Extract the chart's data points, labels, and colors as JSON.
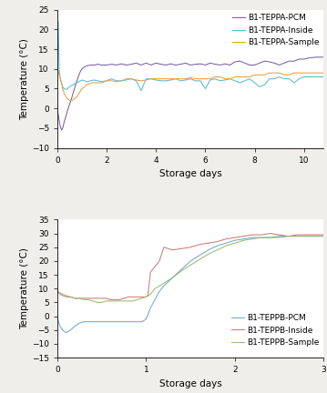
{
  "top": {
    "xlabel": "Storage days",
    "ylabel": "Temperature (°C)",
    "xlim": [
      0,
      10.8
    ],
    "ylim": [
      -10,
      25
    ],
    "yticks": [
      -10,
      -5,
      0,
      5,
      10,
      15,
      20,
      25
    ],
    "xticks": [
      0,
      2,
      4,
      6,
      8,
      10
    ],
    "legend": [
      "B1-TEPPA-PCM",
      "B1-TEPPA-Inside",
      "B1-TEPPA-Sample"
    ],
    "colors": [
      "#7B5EA7",
      "#5BB8D4",
      "#E8A040"
    ],
    "series": {
      "PCM": {
        "x": [
          0.0,
          0.04,
          0.08,
          0.12,
          0.18,
          0.22,
          0.28,
          0.35,
          0.42,
          0.5,
          0.58,
          0.65,
          0.72,
          0.8,
          0.88,
          0.95,
          1.0,
          1.1,
          1.2,
          1.35,
          1.5,
          1.65,
          1.8,
          2.0,
          2.2,
          2.4,
          2.6,
          2.8,
          3.0,
          3.2,
          3.4,
          3.6,
          3.8,
          4.0,
          4.2,
          4.4,
          4.6,
          4.8,
          5.0,
          5.2,
          5.4,
          5.6,
          5.8,
          6.0,
          6.2,
          6.4,
          6.6,
          6.8,
          7.0,
          7.2,
          7.4,
          7.6,
          7.8,
          8.0,
          8.2,
          8.4,
          8.6,
          8.8,
          9.0,
          9.2,
          9.4,
          9.6,
          9.8,
          10.0,
          10.2,
          10.5,
          10.8
        ],
        "y": [
          -0.5,
          -1.5,
          -3.0,
          -4.5,
          -5.5,
          -5.0,
          -3.5,
          -2.0,
          -0.5,
          1.0,
          2.5,
          4.0,
          5.5,
          7.0,
          8.5,
          9.5,
          10.0,
          10.5,
          10.8,
          11.0,
          11.0,
          11.2,
          11.0,
          11.0,
          11.2,
          11.0,
          11.3,
          11.0,
          11.2,
          11.5,
          11.0,
          11.5,
          11.0,
          11.5,
          11.2,
          11.0,
          11.3,
          11.0,
          11.2,
          11.5,
          11.0,
          11.2,
          11.3,
          11.0,
          11.5,
          11.2,
          11.0,
          11.3,
          11.0,
          11.8,
          12.0,
          11.5,
          11.0,
          11.0,
          11.5,
          12.0,
          11.8,
          11.5,
          11.0,
          11.5,
          12.0,
          12.0,
          12.5,
          12.5,
          12.8,
          13.0,
          13.0
        ]
      },
      "Inside": {
        "x": [
          0.0,
          0.04,
          0.08,
          0.12,
          0.18,
          0.22,
          0.28,
          0.35,
          0.42,
          0.5,
          0.58,
          0.65,
          0.72,
          0.8,
          0.88,
          0.95,
          1.0,
          1.1,
          1.2,
          1.35,
          1.5,
          1.65,
          1.8,
          2.0,
          2.2,
          2.4,
          2.6,
          2.8,
          3.0,
          3.2,
          3.4,
          3.6,
          3.8,
          4.0,
          4.2,
          4.4,
          4.6,
          4.8,
          5.0,
          5.2,
          5.4,
          5.6,
          5.8,
          6.0,
          6.2,
          6.4,
          6.6,
          6.8,
          7.0,
          7.2,
          7.4,
          7.6,
          7.8,
          8.0,
          8.2,
          8.4,
          8.6,
          8.8,
          9.0,
          9.2,
          9.4,
          9.6,
          9.8,
          10.0,
          10.2,
          10.5,
          10.8
        ],
        "y": [
          9.5,
          22.0,
          10.0,
          7.5,
          6.5,
          5.5,
          5.0,
          4.8,
          5.0,
          5.5,
          5.8,
          6.0,
          6.3,
          6.5,
          6.8,
          7.0,
          7.2,
          7.0,
          6.8,
          7.0,
          7.2,
          7.0,
          6.8,
          7.0,
          7.5,
          7.0,
          7.0,
          7.2,
          7.5,
          7.0,
          4.5,
          7.5,
          7.5,
          7.2,
          7.0,
          7.0,
          7.2,
          7.5,
          7.0,
          7.2,
          7.5,
          7.0,
          7.0,
          5.0,
          7.2,
          7.5,
          7.0,
          7.2,
          7.5,
          7.0,
          6.5,
          7.0,
          7.5,
          6.5,
          5.5,
          6.0,
          7.5,
          7.5,
          8.0,
          7.5,
          7.5,
          6.5,
          7.5,
          8.0,
          8.0,
          8.0,
          8.0
        ]
      },
      "Sample": {
        "x": [
          0.0,
          0.04,
          0.08,
          0.15,
          0.22,
          0.3,
          0.4,
          0.5,
          0.6,
          0.7,
          0.8,
          0.9,
          1.0,
          1.2,
          1.4,
          1.6,
          1.8,
          2.0,
          2.2,
          2.4,
          2.6,
          2.8,
          3.0,
          3.2,
          3.4,
          3.6,
          3.8,
          4.0,
          4.2,
          4.4,
          4.6,
          4.8,
          5.0,
          5.2,
          5.4,
          5.6,
          5.8,
          6.0,
          6.2,
          6.4,
          6.6,
          6.8,
          7.0,
          7.2,
          7.4,
          7.6,
          7.8,
          8.0,
          8.2,
          8.4,
          8.6,
          8.8,
          9.0,
          9.2,
          9.4,
          9.6,
          9.8,
          10.0,
          10.2,
          10.5,
          10.8
        ],
        "y": [
          10.0,
          9.5,
          8.5,
          7.0,
          5.0,
          3.5,
          2.5,
          2.0,
          2.0,
          2.5,
          3.0,
          4.0,
          5.0,
          6.0,
          6.5,
          6.5,
          6.5,
          7.0,
          7.0,
          6.8,
          7.0,
          7.5,
          7.5,
          7.2,
          7.0,
          7.2,
          7.5,
          7.5,
          7.5,
          7.5,
          7.5,
          7.5,
          7.5,
          7.5,
          7.8,
          7.5,
          7.5,
          7.5,
          7.5,
          8.0,
          8.0,
          7.5,
          7.5,
          8.0,
          8.0,
          8.0,
          8.0,
          8.5,
          8.5,
          8.5,
          9.0,
          9.0,
          9.0,
          8.5,
          8.5,
          9.0,
          9.0,
          9.0,
          9.0,
          9.0,
          9.0
        ]
      }
    }
  },
  "bottom": {
    "xlabel": "Storage days",
    "ylabel": "Temperature (°C)",
    "xlim": [
      0,
      3
    ],
    "ylim": [
      -15,
      35
    ],
    "yticks": [
      -15,
      -10,
      -5,
      0,
      5,
      10,
      15,
      20,
      25,
      30,
      35
    ],
    "xticks": [
      0,
      1,
      2,
      3
    ],
    "legend": [
      "B1-TEPPB-PCM",
      "B1-TEPPB-Inside",
      "B1-TEPPB-Sample"
    ],
    "colors": [
      "#6EA8D0",
      "#C97B7B",
      "#9BB86E"
    ],
    "series": {
      "PCM": {
        "x": [
          0.0,
          0.01,
          0.03,
          0.06,
          0.1,
          0.15,
          0.2,
          0.25,
          0.3,
          0.35,
          0.4,
          0.45,
          0.5,
          0.55,
          0.6,
          0.65,
          0.7,
          0.75,
          0.8,
          0.85,
          0.9,
          0.95,
          0.98,
          1.0,
          1.02,
          1.05,
          1.1,
          1.15,
          1.2,
          1.3,
          1.4,
          1.5,
          1.6,
          1.7,
          1.8,
          1.9,
          2.0,
          2.1,
          2.2,
          2.3,
          2.4,
          2.5,
          2.6,
          2.7,
          2.8,
          2.9,
          3.0
        ],
        "y": [
          0.0,
          -1.5,
          -3.5,
          -5.0,
          -6.0,
          -5.0,
          -3.5,
          -2.5,
          -2.0,
          -2.0,
          -2.0,
          -2.0,
          -2.0,
          -2.0,
          -2.0,
          -2.0,
          -2.0,
          -2.0,
          -2.0,
          -2.0,
          -2.0,
          -2.0,
          -1.5,
          -1.0,
          0.5,
          3.0,
          6.0,
          9.0,
          11.0,
          14.0,
          17.0,
          20.0,
          22.0,
          24.0,
          25.5,
          26.5,
          27.5,
          28.0,
          28.5,
          28.5,
          28.5,
          29.0,
          29.0,
          29.0,
          29.0,
          29.0,
          29.0
        ]
      },
      "Inside": {
        "x": [
          0.0,
          0.01,
          0.03,
          0.06,
          0.1,
          0.15,
          0.2,
          0.25,
          0.3,
          0.35,
          0.4,
          0.45,
          0.5,
          0.55,
          0.6,
          0.65,
          0.7,
          0.75,
          0.8,
          0.85,
          0.9,
          0.95,
          0.98,
          1.0,
          1.02,
          1.05,
          1.1,
          1.15,
          1.2,
          1.3,
          1.4,
          1.5,
          1.6,
          1.7,
          1.8,
          1.9,
          2.0,
          2.1,
          2.2,
          2.3,
          2.4,
          2.5,
          2.6,
          2.7,
          2.8,
          2.9,
          3.0
        ],
        "y": [
          10.0,
          9.0,
          8.0,
          7.5,
          7.0,
          7.0,
          6.5,
          6.5,
          6.5,
          6.5,
          6.5,
          6.5,
          6.5,
          6.5,
          6.0,
          6.0,
          6.0,
          6.5,
          7.0,
          7.0,
          7.0,
          7.0,
          7.0,
          7.0,
          7.5,
          16.0,
          18.0,
          20.0,
          25.0,
          24.0,
          24.5,
          25.0,
          26.0,
          26.5,
          27.0,
          28.0,
          28.5,
          29.0,
          29.5,
          29.5,
          30.0,
          29.5,
          29.0,
          29.5,
          29.5,
          29.5,
          29.5
        ]
      },
      "Sample": {
        "x": [
          0.0,
          0.01,
          0.03,
          0.06,
          0.1,
          0.15,
          0.2,
          0.25,
          0.3,
          0.35,
          0.4,
          0.45,
          0.5,
          0.55,
          0.6,
          0.65,
          0.7,
          0.75,
          0.8,
          0.85,
          0.9,
          0.95,
          1.0,
          1.05,
          1.1,
          1.2,
          1.3,
          1.4,
          1.5,
          1.6,
          1.7,
          1.8,
          1.9,
          2.0,
          2.1,
          2.2,
          2.3,
          2.4,
          2.5,
          2.6,
          2.7,
          2.8,
          2.9,
          3.0
        ],
        "y": [
          9.0,
          8.5,
          8.5,
          8.0,
          7.5,
          7.0,
          6.5,
          6.5,
          6.0,
          6.0,
          5.5,
          5.0,
          5.0,
          5.5,
          5.5,
          5.5,
          5.5,
          5.5,
          5.5,
          5.5,
          6.0,
          6.5,
          7.0,
          8.0,
          10.0,
          12.0,
          14.0,
          16.5,
          18.5,
          20.5,
          22.5,
          24.0,
          25.5,
          26.5,
          27.5,
          28.0,
          28.5,
          28.5,
          28.5,
          29.0,
          29.0,
          29.0,
          29.0,
          29.0
        ]
      }
    }
  },
  "fig_width": 3.59,
  "fig_height": 4.32,
  "dpi": 100,
  "bg_color": "#f0eeeb",
  "axis_bg_color": "#ffffff",
  "font_size_label": 7.5,
  "font_size_tick": 6.5,
  "font_size_legend": 6.5,
  "line_width": 0.75
}
